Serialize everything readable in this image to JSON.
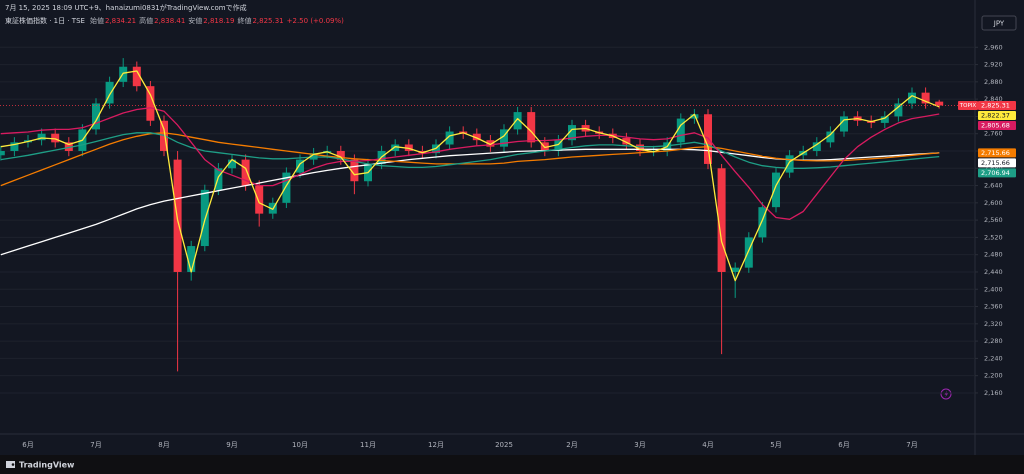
{
  "header": {
    "created": "7月 15, 2025 18:09 UTC+9、hanaizumi0831がTradingView.comで作成",
    "symbol": "東証株価指数 · 1日 · TSE",
    "ohlc": [
      {
        "label": "始値",
        "value": "2,834.21"
      },
      {
        "label": "高値",
        "value": "2,838.41"
      },
      {
        "label": "安値",
        "value": "2,818.19"
      },
      {
        "label": "終値",
        "value": "2,825.31"
      }
    ],
    "change": "+2.50 (+0.09%)",
    "currency": "JPY"
  },
  "footer": {
    "brand": "TradingView"
  },
  "chart_data": {
    "type": "candlestick",
    "symbol_tag": "TOPIX",
    "last_price": 2825.31,
    "last_price_label": "2,825.31",
    "up_color": "#089981",
    "down_color": "#f23645",
    "categories": [
      null,
      null,
      "6月",
      null,
      null,
      null,
      null,
      "7月",
      null,
      null,
      null,
      null,
      "8月",
      null,
      null,
      null,
      null,
      "9月",
      null,
      null,
      null,
      null,
      "10月",
      null,
      null,
      null,
      null,
      "11月",
      null,
      null,
      null,
      null,
      "12月",
      null,
      null,
      null,
      null,
      "2025",
      null,
      null,
      null,
      null,
      "2月",
      null,
      null,
      null,
      null,
      "3月",
      null,
      null,
      null,
      null,
      "4月",
      null,
      null,
      null,
      null,
      "5月",
      null,
      null,
      null,
      null,
      "6月",
      null,
      null,
      null,
      null,
      "7月",
      null,
      null
    ],
    "open": [
      2710,
      2720,
      2740,
      2745,
      2760,
      2740,
      2720,
      2770,
      2830,
      2880,
      2915,
      2870,
      2790,
      2700,
      2440,
      2500,
      2630,
      2680,
      2700,
      2640,
      2575,
      2600,
      2670,
      2700,
      2715,
      2720,
      2700,
      2650,
      2690,
      2720,
      2735,
      2720,
      2715,
      2735,
      2765,
      2760,
      2745,
      2730,
      2770,
      2810,
      2740,
      2720,
      2745,
      2780,
      2765,
      2760,
      2750,
      2735,
      2720,
      2720,
      2740,
      2795,
      2805,
      2680,
      2440,
      2450,
      2520,
      2590,
      2670,
      2710,
      2720,
      2740,
      2765,
      2800,
      2790,
      2785,
      2800,
      2830,
      2855,
      2834.21
    ],
    "high": [
      2732,
      2752,
      2757,
      2772,
      2772,
      2752,
      2782,
      2842,
      2892,
      2935,
      2927,
      2882,
      2802,
      2720,
      2512,
      2642,
      2692,
      2712,
      2712,
      2652,
      2612,
      2682,
      2712,
      2727,
      2732,
      2732,
      2712,
      2702,
      2732,
      2747,
      2747,
      2732,
      2747,
      2777,
      2777,
      2772,
      2757,
      2782,
      2822,
      2822,
      2752,
      2757,
      2792,
      2792,
      2777,
      2772,
      2762,
      2747,
      2732,
      2752,
      2807,
      2817,
      2817,
      2690,
      2462,
      2532,
      2602,
      2682,
      2722,
      2732,
      2752,
      2777,
      2812,
      2812,
      2802,
      2812,
      2842,
      2867,
      2867,
      2838.41
    ],
    "low": [
      2698,
      2708,
      2728,
      2733,
      2728,
      2708,
      2708,
      2758,
      2818,
      2868,
      2858,
      2778,
      2708,
      2210,
      2420,
      2488,
      2618,
      2668,
      2628,
      2545,
      2563,
      2588,
      2658,
      2688,
      2703,
      2688,
      2620,
      2638,
      2678,
      2708,
      2708,
      2703,
      2703,
      2723,
      2748,
      2733,
      2718,
      2718,
      2758,
      2728,
      2708,
      2708,
      2733,
      2753,
      2748,
      2738,
      2723,
      2708,
      2708,
      2708,
      2728,
      2783,
      2678,
      2250,
      2380,
      2438,
      2508,
      2578,
      2658,
      2698,
      2708,
      2728,
      2753,
      2778,
      2773,
      2773,
      2788,
      2818,
      2818,
      2818.19
    ],
    "close": [
      2720,
      2740,
      2745,
      2760,
      2740,
      2720,
      2770,
      2830,
      2880,
      2915,
      2870,
      2790,
      2720,
      2440,
      2500,
      2630,
      2680,
      2700,
      2640,
      2575,
      2600,
      2670,
      2700,
      2715,
      2720,
      2700,
      2650,
      2690,
      2720,
      2735,
      2720,
      2715,
      2735,
      2765,
      2760,
      2745,
      2730,
      2770,
      2810,
      2740,
      2720,
      2745,
      2780,
      2765,
      2760,
      2750,
      2735,
      2720,
      2720,
      2740,
      2795,
      2805,
      2690,
      2440,
      2450,
      2520,
      2590,
      2670,
      2710,
      2720,
      2740,
      2765,
      2800,
      2790,
      2785,
      2800,
      2830,
      2855,
      2830,
      2825.31
    ],
    "series": [
      {
        "color": "#ffffff",
        "text_color": "#131722",
        "last_value": 2715.66,
        "last_label": "2,715.66",
        "values": [
          2480,
          2490,
          2500,
          2510,
          2520,
          2530,
          2540,
          2550,
          2562,
          2574,
          2586,
          2596,
          2604,
          2610,
          2616,
          2622,
          2628,
          2634,
          2640,
          2646,
          2652,
          2658,
          2664,
          2670,
          2675,
          2680,
          2684,
          2688,
          2692,
          2696,
          2700,
          2703,
          2706,
          2709,
          2711,
          2713,
          2715,
          2717,
          2719,
          2720,
          2721,
          2722,
          2723,
          2724,
          2724,
          2724,
          2724,
          2724,
          2724,
          2724,
          2724,
          2723,
          2721,
          2717,
          2713,
          2709,
          2705,
          2702,
          2700,
          2699,
          2699,
          2700,
          2702,
          2704,
          2706,
          2708,
          2710,
          2712,
          2714,
          2715.66
        ]
      },
      {
        "color": "#f57c00",
        "text_color": "#ffffff",
        "last_value": 2715.66,
        "last_label": "2,715.66",
        "values": [
          2640,
          2652,
          2664,
          2676,
          2688,
          2700,
          2712,
          2724,
          2736,
          2746,
          2754,
          2760,
          2762,
          2758,
          2752,
          2746,
          2740,
          2736,
          2732,
          2728,
          2724,
          2720,
          2716,
          2712,
          2708,
          2705,
          2702,
          2700,
          2698,
          2696,
          2694,
          2692,
          2690,
          2690,
          2690,
          2690,
          2690,
          2692,
          2696,
          2698,
          2700,
          2703,
          2706,
          2708,
          2710,
          2712,
          2714,
          2716,
          2718,
          2720,
          2724,
          2728,
          2730,
          2726,
          2720,
          2714,
          2708,
          2703,
          2700,
          2698,
          2697,
          2697,
          2698,
          2700,
          2702,
          2704,
          2707,
          2710,
          2713,
          2715.66
        ]
      },
      {
        "color": "#1e9e86",
        "text_color": "#ffffff",
        "last_value": 2706.94,
        "last_label": "2,706.94",
        "values": [
          2700,
          2705,
          2710,
          2716,
          2722,
          2728,
          2734,
          2742,
          2750,
          2758,
          2762,
          2762,
          2756,
          2740,
          2728,
          2720,
          2716,
          2712,
          2708,
          2704,
          2702,
          2702,
          2704,
          2706,
          2706,
          2702,
          2696,
          2690,
          2686,
          2684,
          2682,
          2682,
          2684,
          2688,
          2692,
          2696,
          2700,
          2706,
          2712,
          2716,
          2720,
          2724,
          2728,
          2732,
          2734,
          2734,
          2732,
          2730,
          2730,
          2732,
          2736,
          2740,
          2734,
          2720,
          2706,
          2694,
          2686,
          2682,
          2680,
          2680,
          2681,
          2683,
          2686,
          2689,
          2692,
          2695,
          2698,
          2701,
          2704,
          2706.94
        ]
      },
      {
        "color": "#d81b60",
        "text_color": "#ffffff",
        "last_value": 2805.68,
        "last_label": "2,805.68",
        "values": [
          2760,
          2762,
          2764,
          2768,
          2770,
          2770,
          2774,
          2784,
          2796,
          2808,
          2816,
          2820,
          2812,
          2780,
          2740,
          2700,
          2676,
          2664,
          2652,
          2640,
          2640,
          2652,
          2666,
          2680,
          2690,
          2696,
          2696,
          2698,
          2702,
          2706,
          2710,
          2714,
          2718,
          2724,
          2728,
          2732,
          2734,
          2738,
          2742,
          2744,
          2744,
          2746,
          2750,
          2754,
          2756,
          2756,
          2752,
          2748,
          2746,
          2748,
          2756,
          2762,
          2750,
          2710,
          2672,
          2636,
          2596,
          2566,
          2562,
          2580,
          2620,
          2660,
          2700,
          2730,
          2752,
          2770,
          2785,
          2795,
          2800,
          2805.68
        ]
      },
      {
        "color": "#ffeb3b",
        "text_color": "#131722",
        "last_value": 2822.37,
        "last_label": "2,822.37",
        "values": [
          2730,
          2735,
          2742,
          2750,
          2748,
          2735,
          2745,
          2790,
          2850,
          2900,
          2905,
          2850,
          2770,
          2560,
          2440,
          2560,
          2660,
          2700,
          2680,
          2600,
          2585,
          2640,
          2690,
          2712,
          2718,
          2706,
          2665,
          2670,
          2706,
          2730,
          2726,
          2716,
          2726,
          2755,
          2762,
          2750,
          2735,
          2755,
          2795,
          2765,
          2728,
          2735,
          2770,
          2772,
          2762,
          2755,
          2740,
          2724,
          2718,
          2730,
          2780,
          2805,
          2730,
          2510,
          2420,
          2490,
          2560,
          2640,
          2695,
          2715,
          2735,
          2758,
          2792,
          2795,
          2788,
          2796,
          2822,
          2848,
          2835,
          2822.37
        ]
      }
    ],
    "ylim": [
      2065,
      3000
    ],
    "yticks": [
      {
        "value": 2960,
        "label": "2,960"
      },
      {
        "value": 2920,
        "label": "2,920"
      },
      {
        "value": 2880,
        "label": "2,880"
      },
      {
        "value": 2840,
        "label": "2,840"
      },
      {
        "value": 2800,
        "label": "2,800"
      },
      {
        "value": 2760,
        "label": "2,760"
      },
      {
        "value": 2720,
        "label": "2,720"
      },
      {
        "value": 2680,
        "label": "2,680"
      },
      {
        "value": 2640,
        "label": "2,640"
      },
      {
        "value": 2600,
        "label": "2,600"
      },
      {
        "value": 2560,
        "label": "2,560"
      },
      {
        "value": 2520,
        "label": "2,520"
      },
      {
        "value": 2480,
        "label": "2,480"
      },
      {
        "value": 2440,
        "label": "2,440"
      },
      {
        "value": 2400,
        "label": "2,400"
      },
      {
        "value": 2360,
        "label": "2,360"
      },
      {
        "value": 2320,
        "label": "2,320"
      },
      {
        "value": 2280,
        "label": "2,280"
      },
      {
        "value": 2240,
        "label": "2,240"
      },
      {
        "value": 2200,
        "label": "2,200"
      },
      {
        "value": 2160,
        "label": "2,160"
      }
    ],
    "grid": true
  }
}
